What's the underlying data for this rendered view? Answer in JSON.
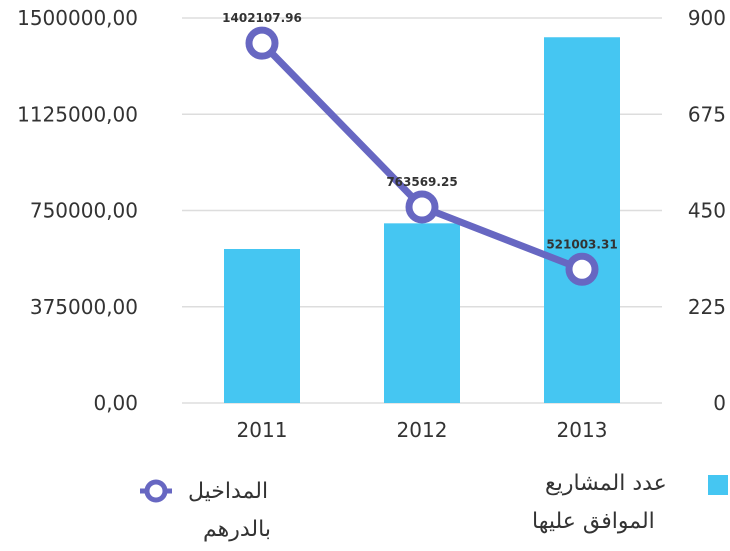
{
  "chart_data": {
    "type": "bar",
    "categories": [
      "2011",
      "2012",
      "2013"
    ],
    "series": [
      {
        "name": "عدد المشاريع الموافق عليها",
        "type": "bar",
        "axis": "right",
        "color": "#45c6f2",
        "values": [
          360,
          420,
          855
        ]
      },
      {
        "name": "المداخيل بالدرهم",
        "type": "line",
        "axis": "left",
        "color": "#6767c2",
        "values": [
          1402107.96,
          763569.25,
          521003.31
        ],
        "labels": [
          "1402107.96",
          "763569.25",
          "521003.31"
        ]
      }
    ],
    "y_left": {
      "range": [
        0,
        1500000
      ],
      "ticks": [
        0,
        375000,
        750000,
        1125000,
        1500000
      ],
      "tick_labels": [
        "0,00",
        "375000,00",
        "750000,00",
        "1125000,00",
        "1500000,00"
      ]
    },
    "y_right": {
      "range": [
        0,
        900
      ],
      "ticks": [
        0,
        225,
        450,
        675,
        900
      ],
      "tick_labels": [
        "0",
        "225",
        "450",
        "675",
        "900"
      ]
    },
    "grid": true,
    "legend_position": "bottom",
    "legend": {
      "bar_label_line1": "عدد المشاريع",
      "bar_label_line2": "الموافق عليها",
      "line_label_line1": "المداخيل",
      "line_label_line2": "بالدرهم"
    }
  }
}
